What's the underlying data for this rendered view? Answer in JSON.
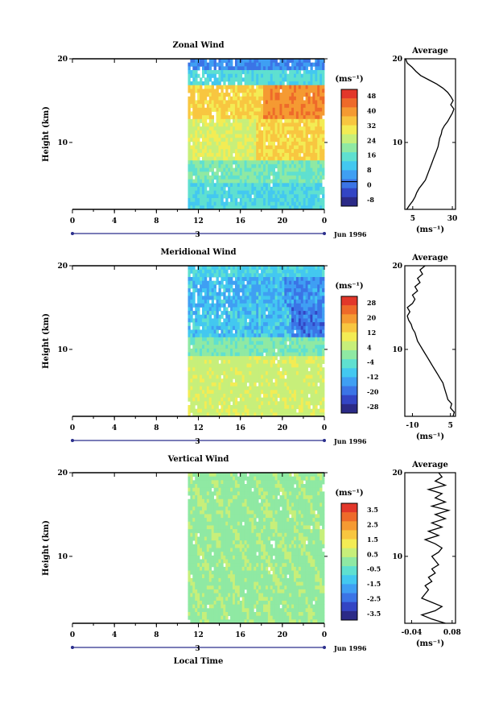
{
  "figure": {
    "colors": {
      "scale": [
        "#2b2a87",
        "#3345c4",
        "#3b74e6",
        "#3f9ff3",
        "#43c8f0",
        "#5fe0d0",
        "#8fe9a3",
        "#c7ef7a",
        "#f3ec54",
        "#f8c640",
        "#f59a32",
        "#ee6a2a",
        "#e2372a"
      ],
      "axis": "#000000",
      "date_marker": "#2b2f8c"
    }
  },
  "chart_data": [
    {
      "id": "zonal",
      "type": "heatmap",
      "title": "Zonal Wind",
      "ylabel": "Height (km)",
      "xlabel": "",
      "x_ticks": [
        "0",
        "4",
        "8",
        "12",
        "16",
        "20",
        "0"
      ],
      "x_range": [
        0,
        24
      ],
      "y_ticks": [
        "20",
        "10"
      ],
      "y_range": [
        2,
        20
      ],
      "data_start_hour": 11,
      "date_marker": "3",
      "date_label": "Jun 1996",
      "colorbar": {
        "unit": "(ms⁻¹)",
        "ticks": [
          "48",
          "40",
          "32",
          "24",
          "16",
          "8",
          "0",
          "-8"
        ],
        "contour_at": "0"
      },
      "average": {
        "title": "Average",
        "x_ticks": [
          "5",
          "30"
        ],
        "x_range": [
          0,
          32
        ],
        "y_ticks": [
          "20",
          "10"
        ],
        "unit": "(ms⁻¹)",
        "profile": [
          [
            2,
            1.2
          ],
          [
            2.5,
            3
          ],
          [
            3,
            5
          ],
          [
            3.5,
            6.5
          ],
          [
            4,
            7.5
          ],
          [
            4.5,
            9
          ],
          [
            5,
            11
          ],
          [
            5.5,
            13
          ],
          [
            6,
            14
          ],
          [
            6.5,
            15
          ],
          [
            7,
            16
          ],
          [
            7.5,
            17
          ],
          [
            8,
            18
          ],
          [
            8.5,
            19
          ],
          [
            9,
            20
          ],
          [
            9.5,
            21
          ],
          [
            10,
            21.5
          ],
          [
            10.5,
            22
          ],
          [
            11,
            23
          ],
          [
            11.5,
            23.5
          ],
          [
            12,
            25
          ],
          [
            12.5,
            27
          ],
          [
            13,
            28.5
          ],
          [
            13.5,
            30
          ],
          [
            14,
            31
          ],
          [
            14.5,
            29
          ],
          [
            15,
            30.5
          ],
          [
            15.5,
            29
          ],
          [
            16,
            27
          ],
          [
            16.5,
            24
          ],
          [
            17,
            20
          ],
          [
            17.5,
            15
          ],
          [
            18,
            10
          ],
          [
            18.5,
            7
          ],
          [
            19,
            4.5
          ],
          [
            19.5,
            1.5
          ],
          [
            20,
            0.5
          ]
        ]
      }
    },
    {
      "id": "meridional",
      "type": "heatmap",
      "title": "Meridional Wind",
      "ylabel": "Height (km)",
      "xlabel": "",
      "x_ticks": [
        "0",
        "4",
        "8",
        "12",
        "16",
        "20",
        "0"
      ],
      "x_range": [
        0,
        24
      ],
      "y_ticks": [
        "20",
        "10"
      ],
      "y_range": [
        2,
        20
      ],
      "data_start_hour": 11,
      "date_marker": "3",
      "date_label": "Jun 1996",
      "colorbar": {
        "unit": "(ms⁻¹)",
        "ticks": [
          "28",
          "20",
          "12",
          "4",
          "-4",
          "-12",
          "-20",
          "-28"
        ],
        "contour_at": "0"
      },
      "average": {
        "title": "Average",
        "x_ticks": [
          "-10",
          "5"
        ],
        "x_range": [
          -13,
          7
        ],
        "y_ticks": [
          "20",
          "10"
        ],
        "unit": "(ms⁻¹)",
        "profile": [
          [
            2,
            6
          ],
          [
            2.5,
            6.5
          ],
          [
            3,
            5
          ],
          [
            3.5,
            5.5
          ],
          [
            4,
            4
          ],
          [
            4.5,
            3.5
          ],
          [
            5,
            3
          ],
          [
            5.5,
            2.5
          ],
          [
            6,
            2
          ],
          [
            6.5,
            1
          ],
          [
            7,
            0
          ],
          [
            7.5,
            -1
          ],
          [
            8,
            -2
          ],
          [
            8.5,
            -3
          ],
          [
            9,
            -4
          ],
          [
            9.5,
            -5
          ],
          [
            10,
            -6
          ],
          [
            10.5,
            -7
          ],
          [
            11,
            -8
          ],
          [
            11.5,
            -8.5
          ],
          [
            12,
            -9
          ],
          [
            12.5,
            -10
          ],
          [
            13,
            -10.5
          ],
          [
            13.5,
            -11.5
          ],
          [
            14,
            -12
          ],
          [
            14.5,
            -11
          ],
          [
            15,
            -12
          ],
          [
            15.5,
            -10
          ],
          [
            16,
            -9
          ],
          [
            16.5,
            -10
          ],
          [
            17,
            -8
          ],
          [
            17.5,
            -9
          ],
          [
            18,
            -7
          ],
          [
            18.5,
            -8
          ],
          [
            19,
            -6
          ],
          [
            19.5,
            -7
          ],
          [
            20,
            -5
          ]
        ]
      }
    },
    {
      "id": "vertical",
      "type": "heatmap",
      "title": "Vertical Wind",
      "ylabel": "Height (km)",
      "xlabel": "Local Time",
      "x_ticks": [
        "0",
        "4",
        "8",
        "12",
        "16",
        "20",
        "0"
      ],
      "x_range": [
        0,
        24
      ],
      "y_ticks": [
        "20",
        "10"
      ],
      "y_range": [
        2,
        20
      ],
      "data_start_hour": 11,
      "date_marker": "3",
      "date_label": "Jun 1996",
      "colorbar": {
        "unit": "(ms⁻¹)",
        "ticks": [
          "3.5",
          "2.5",
          "1.5",
          "0.5",
          "-0.5",
          "-1.5",
          "-2.5",
          "-3.5"
        ],
        "contour_at": ""
      },
      "average": {
        "title": "Average",
        "x_ticks": [
          "-0.04",
          "0.08"
        ],
        "x_range": [
          -0.06,
          0.09
        ],
        "y_ticks": [
          "20",
          "10"
        ],
        "unit": "(ms⁻¹)",
        "profile": [
          [
            2,
            0.06
          ],
          [
            2.5,
            0.02
          ],
          [
            3,
            -0.01
          ],
          [
            3.5,
            0.03
          ],
          [
            4,
            0.05
          ],
          [
            4.5,
            0.02
          ],
          [
            5,
            -0.01
          ],
          [
            5.5,
            0.0
          ],
          [
            6,
            0.01
          ],
          [
            6.5,
            0.0
          ],
          [
            7,
            0.02
          ],
          [
            7.5,
            0.01
          ],
          [
            8,
            0.03
          ],
          [
            8.5,
            0.02
          ],
          [
            9,
            0.04
          ],
          [
            9.5,
            0.03
          ],
          [
            10,
            0.02
          ],
          [
            10.5,
            0.04
          ],
          [
            11,
            0.05
          ],
          [
            11.5,
            0.03
          ],
          [
            12,
            0.0
          ],
          [
            12.5,
            0.04
          ],
          [
            13,
            0.01
          ],
          [
            13.5,
            0.05
          ],
          [
            14,
            0.02
          ],
          [
            14.5,
            0.06
          ],
          [
            15,
            0.03
          ],
          [
            15.5,
            0.07
          ],
          [
            16,
            0.02
          ],
          [
            16.5,
            0.06
          ],
          [
            17,
            0.03
          ],
          [
            17.5,
            0.05
          ],
          [
            18,
            0.01
          ],
          [
            18.5,
            0.06
          ],
          [
            19,
            0.03
          ],
          [
            19.5,
            0.05
          ],
          [
            20,
            0.04
          ]
        ]
      }
    }
  ]
}
